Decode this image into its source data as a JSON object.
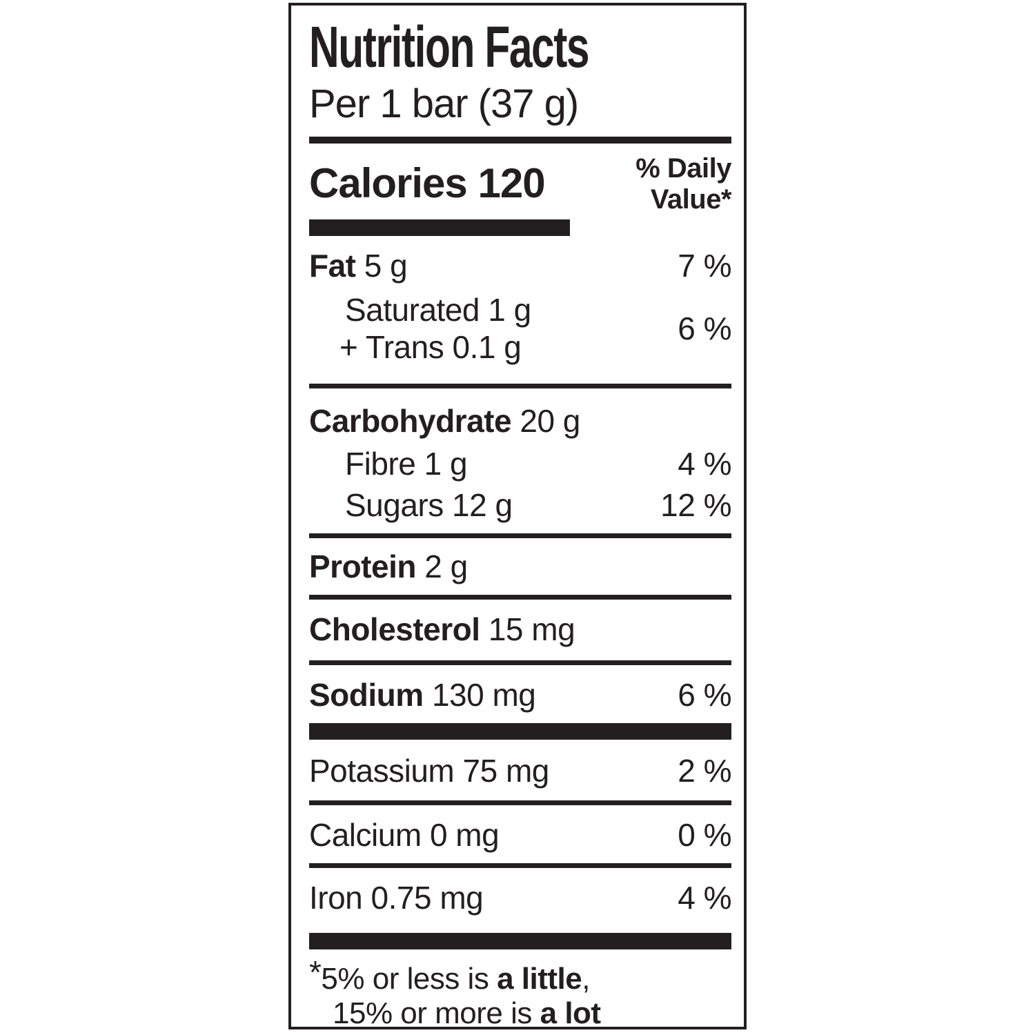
{
  "colors": {
    "text": "#231f20",
    "background": "#ffffff"
  },
  "label": {
    "title": "Nutrition Facts",
    "serving": "Per 1 bar (37 g)",
    "calories": {
      "label": "Calories",
      "value": "120"
    },
    "daily_value_header": {
      "line1": "% Daily",
      "line2": "Value*"
    }
  },
  "nutrients": {
    "fat": {
      "name": "Fat",
      "amount": "5 g",
      "percent": "7 %"
    },
    "saturated": {
      "name": "Saturated",
      "amount": "1 g"
    },
    "trans": {
      "name": "+ Trans",
      "amount": "0.1 g"
    },
    "sat_trans_percent": "6 %",
    "carbohydrate": {
      "name": "Carbohydrate",
      "amount": "20 g"
    },
    "fibre": {
      "name": "Fibre",
      "amount": "1 g",
      "percent": "4 %"
    },
    "sugars": {
      "name": "Sugars",
      "amount": "12 g",
      "percent": "12 %"
    },
    "protein": {
      "name": "Protein",
      "amount": "2 g"
    },
    "cholesterol": {
      "name": "Cholesterol",
      "amount": "15 mg"
    },
    "sodium": {
      "name": "Sodium",
      "amount": "130 mg",
      "percent": "6 %"
    },
    "potassium": {
      "name": "Potassium",
      "amount": "75 mg",
      "percent": "2 %"
    },
    "calcium": {
      "name": "Calcium",
      "amount": "0 mg",
      "percent": "0 %"
    },
    "iron": {
      "name": "Iron",
      "amount": "0.75 mg",
      "percent": "4 %"
    }
  },
  "footnote": {
    "asterisk": "*",
    "line1_text": "5% or less is",
    "line1_bold": "a little",
    "line1_suffix": ",",
    "line2_text": "15% or more is",
    "line2_bold": "a lot"
  }
}
